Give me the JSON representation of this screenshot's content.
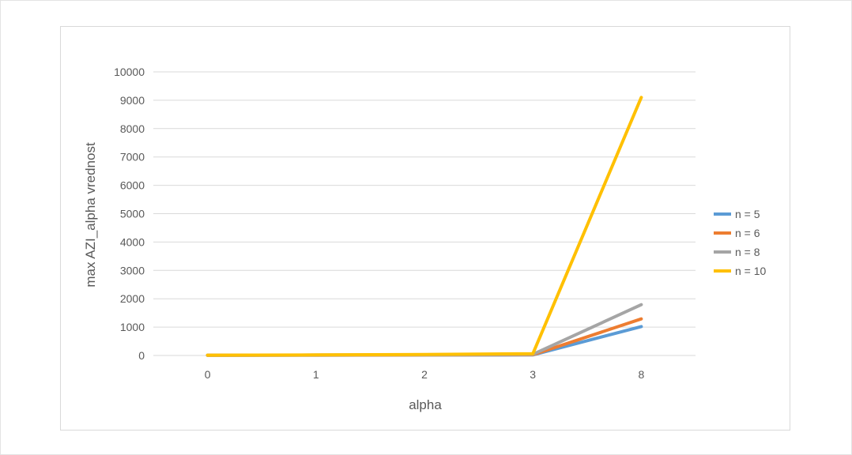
{
  "chart_data": {
    "type": "line",
    "title": "",
    "xlabel": "alpha",
    "ylabel": "max AZI_alpha vrednost",
    "categories": [
      "0",
      "1",
      "2",
      "3",
      "8"
    ],
    "ylim": [
      0,
      10000
    ],
    "yticks": [
      0,
      1000,
      2000,
      3000,
      4000,
      5000,
      6000,
      7000,
      8000,
      9000,
      10000
    ],
    "grid": true,
    "legend_position": "right",
    "series": [
      {
        "name": "n = 5",
        "color": "#5b9bd5",
        "values": [
          5,
          10,
          16,
          20,
          1020
        ]
      },
      {
        "name": "n = 6",
        "color": "#ed7d31",
        "values": [
          6,
          12,
          20,
          26,
          1290
        ]
      },
      {
        "name": "n = 8",
        "color": "#a5a5a5",
        "values": [
          8,
          16,
          28,
          40,
          1790
        ]
      },
      {
        "name": "n = 10",
        "color": "#ffc000",
        "values": [
          10,
          20,
          36,
          60,
          9100
        ]
      }
    ]
  }
}
